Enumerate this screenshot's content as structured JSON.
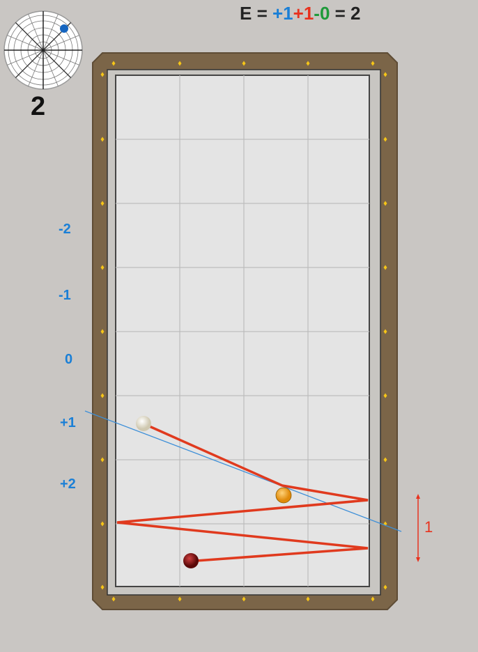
{
  "equation": {
    "prefix": "E = ",
    "term1": "+1",
    "term2": "+1",
    "term3": "-0",
    "suffix": " = 2",
    "colors": {
      "term1": "#1a7fd6",
      "term2": "#e8321e",
      "term3": "#1f9a3a"
    }
  },
  "spin_dial": {
    "value": "2",
    "dot_color": "#1565c0"
  },
  "diamond_labels": [
    "-2",
    "-1",
    "0",
    "+1",
    "+2"
  ],
  "diamond_label_color": "#1a7fd6",
  "measure": {
    "label": "1",
    "color": "#e8321e"
  },
  "balls": {
    "cue": "white",
    "object1": "orange",
    "object2": "red"
  },
  "path_color": "#e03a1e",
  "aim_line_color": "#3d8fd8"
}
